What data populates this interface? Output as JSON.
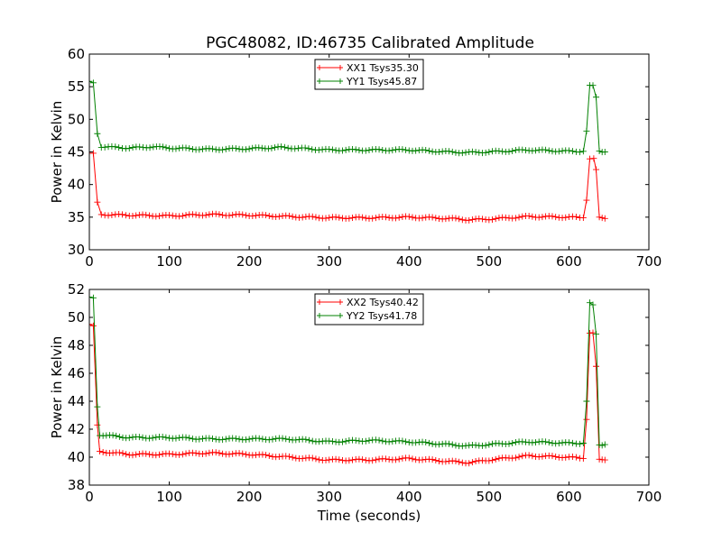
{
  "figure": {
    "title": "PGC48082, ID:46735 Calibrated Amplitude",
    "colors": {
      "red": "#ff0000",
      "green": "#008000"
    }
  },
  "chart_data": [
    {
      "type": "line",
      "title": "PGC48082, ID:46735 Calibrated Amplitude",
      "xlabel": "",
      "ylabel": "Power in Kelvin",
      "xlim": [
        0,
        700
      ],
      "ylim": [
        30,
        60
      ],
      "xticks": [
        "0",
        "100",
        "200",
        "300",
        "400",
        "500",
        "600",
        "700"
      ],
      "yticks": [
        "30",
        "35",
        "40",
        "45",
        "50",
        "55",
        "60"
      ],
      "legend_position": "top-center",
      "marker": "+",
      "series": [
        {
          "name": "XX1 Tsys35.30",
          "color": "#ff0000",
          "points": [
            [
              0,
              44.8
            ],
            [
              5,
              44.8
            ],
            [
              10,
              37.3
            ],
            [
              15,
              35.4
            ],
            [
              50,
              35.3
            ],
            [
              100,
              35.2
            ],
            [
              150,
              35.4
            ],
            [
              200,
              35.3
            ],
            [
              250,
              35.1
            ],
            [
              300,
              34.9
            ],
            [
              350,
              34.9
            ],
            [
              400,
              35.0
            ],
            [
              450,
              34.8
            ],
            [
              475,
              34.6
            ],
            [
              500,
              34.7
            ],
            [
              550,
              35.1
            ],
            [
              600,
              35.0
            ],
            [
              618,
              34.9
            ],
            [
              622,
              37.6
            ],
            [
              626,
              44.0
            ],
            [
              631,
              44.0
            ],
            [
              634,
              42.3
            ],
            [
              638,
              34.9
            ],
            [
              645,
              34.8
            ]
          ]
        },
        {
          "name": "YY1 Tsys45.87",
          "color": "#008000",
          "points": [
            [
              0,
              55.7
            ],
            [
              5,
              55.6
            ],
            [
              10,
              47.8
            ],
            [
              15,
              45.8
            ],
            [
              50,
              45.6
            ],
            [
              80,
              45.8
            ],
            [
              100,
              45.6
            ],
            [
              150,
              45.4
            ],
            [
              200,
              45.5
            ],
            [
              240,
              45.7
            ],
            [
              300,
              45.3
            ],
            [
              350,
              45.3
            ],
            [
              400,
              45.3
            ],
            [
              450,
              45.0
            ],
            [
              475,
              44.9
            ],
            [
              500,
              45.0
            ],
            [
              550,
              45.3
            ],
            [
              600,
              45.1
            ],
            [
              618,
              45.1
            ],
            [
              622,
              48.2
            ],
            [
              626,
              55.1
            ],
            [
              630,
              55.2
            ],
            [
              634,
              53.4
            ],
            [
              638,
              45.2
            ],
            [
              645,
              45.0
            ]
          ]
        }
      ]
    },
    {
      "type": "line",
      "title": "",
      "xlabel": "Time (seconds)",
      "ylabel": "Power in Kelvin",
      "xlim": [
        0,
        700
      ],
      "ylim": [
        38,
        52
      ],
      "xticks": [
        "0",
        "100",
        "200",
        "300",
        "400",
        "500",
        "600",
        "700"
      ],
      "yticks": [
        "38",
        "40",
        "42",
        "44",
        "46",
        "48",
        "50",
        "52"
      ],
      "legend_position": "top-center",
      "marker": "+",
      "series": [
        {
          "name": "XX2 Tsys40.42",
          "color": "#ff0000",
          "points": [
            [
              0,
              49.5
            ],
            [
              5,
              49.4
            ],
            [
              10,
              42.3
            ],
            [
              13,
              40.4
            ],
            [
              50,
              40.2
            ],
            [
              100,
              40.2
            ],
            [
              150,
              40.3
            ],
            [
              200,
              40.2
            ],
            [
              250,
              40.0
            ],
            [
              300,
              39.8
            ],
            [
              350,
              39.8
            ],
            [
              400,
              39.9
            ],
            [
              450,
              39.7
            ],
            [
              475,
              39.6
            ],
            [
              500,
              39.8
            ],
            [
              550,
              40.1
            ],
            [
              600,
              40.0
            ],
            [
              618,
              39.9
            ],
            [
              622,
              42.7
            ],
            [
              626,
              48.9
            ],
            [
              630,
              48.9
            ],
            [
              634,
              46.5
            ],
            [
              638,
              39.8
            ],
            [
              645,
              39.8
            ]
          ]
        },
        {
          "name": "YY2 Tsys41.78",
          "color": "#008000",
          "points": [
            [
              0,
              51.4
            ],
            [
              5,
              51.4
            ],
            [
              10,
              43.6
            ],
            [
              13,
              41.6
            ],
            [
              50,
              41.4
            ],
            [
              100,
              41.4
            ],
            [
              150,
              41.3
            ],
            [
              200,
              41.3
            ],
            [
              250,
              41.3
            ],
            [
              300,
              41.1
            ],
            [
              350,
              41.2
            ],
            [
              400,
              41.1
            ],
            [
              450,
              40.9
            ],
            [
              475,
              40.8
            ],
            [
              500,
              40.9
            ],
            [
              550,
              41.1
            ],
            [
              600,
              41.0
            ],
            [
              618,
              41.0
            ],
            [
              622,
              44.0
            ],
            [
              626,
              51.0
            ],
            [
              630,
              50.9
            ],
            [
              634,
              48.8
            ],
            [
              638,
              40.9
            ],
            [
              645,
              40.9
            ]
          ]
        }
      ]
    }
  ]
}
